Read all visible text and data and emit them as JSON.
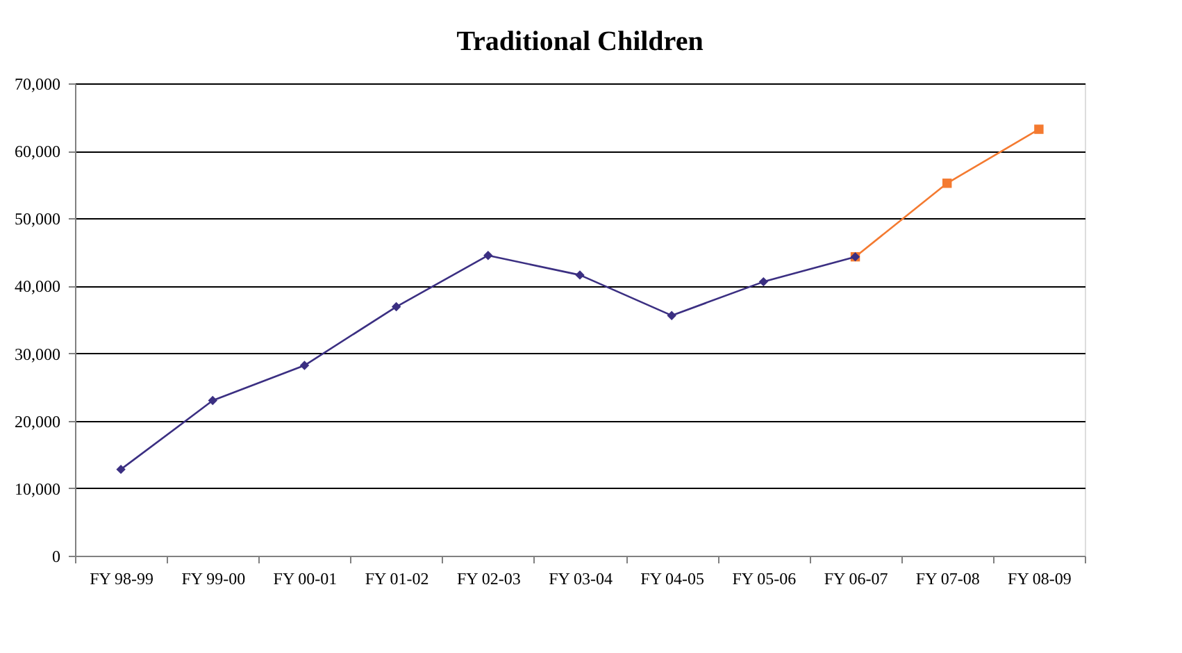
{
  "chart_data": {
    "type": "line",
    "title": "Traditional Children",
    "categories": [
      "FY 98-99",
      "FY 99-00",
      "FY 00-01",
      "FY 01-02",
      "FY 02-03",
      "FY 03-04",
      "FY 04-05",
      "FY 05-06",
      "FY 06-07",
      "FY 07-08",
      "FY 08-09"
    ],
    "series": [
      {
        "color": "#f47a30",
        "marker": "square",
        "values": [
          null,
          null,
          null,
          null,
          null,
          null,
          null,
          null,
          44300,
          55200,
          63200
        ]
      },
      {
        "color": "#3b2f82",
        "marker": "diamond",
        "values": [
          12800,
          23000,
          28200,
          36900,
          44500,
          41600,
          35600,
          40600,
          44300,
          null,
          null
        ]
      }
    ],
    "ylim": [
      0,
      70000
    ],
    "yticks": [
      {
        "value": 0,
        "label": "0"
      },
      {
        "value": 10000,
        "label": "10,000"
      },
      {
        "value": 20000,
        "label": "20,000"
      },
      {
        "value": 30000,
        "label": "30,000"
      },
      {
        "value": 40000,
        "label": "40,000"
      },
      {
        "value": 50000,
        "label": "50,000"
      },
      {
        "value": 60000,
        "label": "60,000"
      },
      {
        "value": 70000,
        "label": "70,000"
      }
    ],
    "grid": "y",
    "line_style": "solid"
  }
}
